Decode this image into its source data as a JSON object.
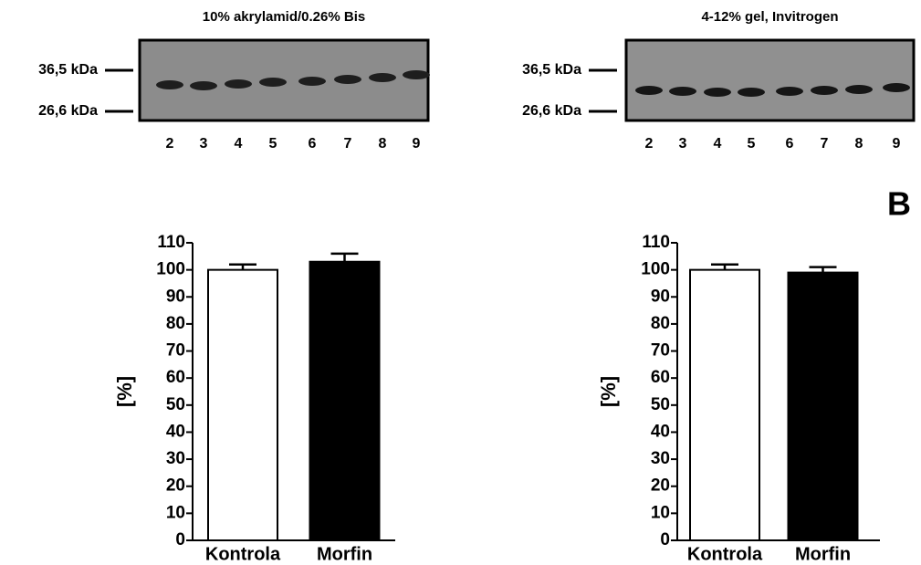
{
  "gels": [
    {
      "title": "10% akrylamid/0.26% Bis",
      "markers": [
        "36,5 kDa",
        "26,6 kDa"
      ],
      "lanes": [
        "2",
        "3",
        "4",
        "5",
        "6",
        "7",
        "8",
        "9"
      ]
    },
    {
      "title": "4-12% gel, Invitrogen",
      "markers": [
        "36,5 kDa",
        "26,6 kDa"
      ],
      "lanes": [
        "2",
        "3",
        "4",
        "5",
        "6",
        "7",
        "8",
        "9"
      ]
    }
  ],
  "panel_label": "B",
  "chart_data": [
    {
      "type": "bar",
      "y_label": "[%]",
      "categories": [
        "Kontrola",
        "Morfin"
      ],
      "values": [
        100,
        103
      ],
      "errors": [
        2,
        3
      ],
      "colors": [
        "#ffffff",
        "#000000"
      ],
      "ylim": [
        0,
        110
      ],
      "yticks": [
        0,
        10,
        20,
        30,
        40,
        50,
        60,
        70,
        80,
        90,
        100,
        110
      ]
    },
    {
      "type": "bar",
      "y_label": "[%]",
      "categories": [
        "Kontrola",
        "Morfin"
      ],
      "values": [
        100,
        99
      ],
      "errors": [
        2,
        2
      ],
      "colors": [
        "#ffffff",
        "#000000"
      ],
      "ylim": [
        0,
        110
      ],
      "yticks": [
        0,
        10,
        20,
        30,
        40,
        50,
        60,
        70,
        80,
        90,
        100,
        110
      ]
    }
  ]
}
